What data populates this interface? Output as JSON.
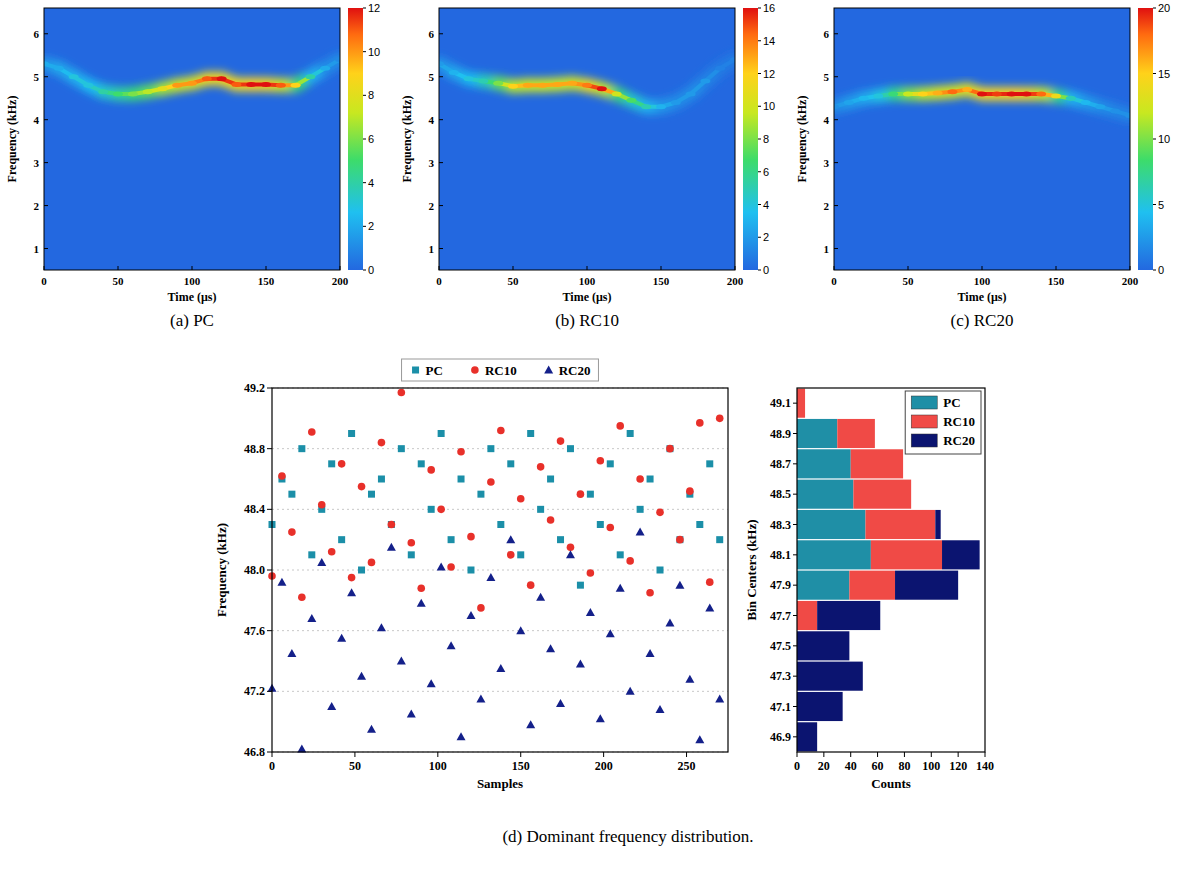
{
  "chart_data": [
    {
      "type": "heatmap",
      "title": "(a) PC",
      "xlabel": "Time (μs)",
      "ylabel": "Frequency (kHz)",
      "x": [
        0,
        10,
        20,
        30,
        40,
        50,
        60,
        70,
        80,
        90,
        100,
        110,
        120,
        130,
        140,
        150,
        160,
        170,
        180,
        190,
        200
      ],
      "ridge": [
        5.3,
        5.2,
        5.0,
        4.8,
        4.65,
        4.6,
        4.6,
        4.65,
        4.72,
        4.8,
        4.85,
        4.95,
        4.95,
        4.82,
        4.82,
        4.82,
        4.8,
        4.8,
        5.0,
        5.2,
        5.4
      ],
      "intensity": [
        2,
        2,
        3,
        3,
        4,
        5,
        6,
        7,
        8,
        10,
        10,
        11,
        12,
        11,
        12,
        12,
        11,
        9,
        4,
        2,
        1
      ],
      "xlim": [
        0,
        200
      ],
      "xticks": [
        0,
        50,
        100,
        150,
        200
      ],
      "ylim": [
        0.5,
        6.6
      ],
      "yticks": [
        1,
        2,
        3,
        4,
        5,
        6
      ],
      "colorbar_range": [
        0,
        12
      ],
      "colorbar_ticks": [
        0,
        2,
        4,
        6,
        8,
        10,
        12
      ]
    },
    {
      "type": "heatmap",
      "title": "(b) RC10",
      "xlabel": "Time (μs)",
      "ylabel": "Frequency (kHz)",
      "x": [
        0,
        10,
        20,
        30,
        40,
        50,
        60,
        70,
        80,
        90,
        100,
        110,
        120,
        130,
        140,
        150,
        160,
        170,
        180,
        190,
        200
      ],
      "ridge": [
        5.3,
        5.1,
        4.95,
        4.9,
        4.85,
        4.78,
        4.8,
        4.8,
        4.82,
        4.85,
        4.8,
        4.72,
        4.6,
        4.45,
        4.3,
        4.3,
        4.4,
        4.6,
        4.9,
        5.2,
        5.4
      ],
      "intensity": [
        2,
        3,
        4,
        5,
        8,
        12,
        13,
        13,
        13,
        13,
        14,
        16,
        10,
        7,
        5,
        3,
        2,
        2,
        2,
        1,
        1
      ],
      "xlim": [
        0,
        200
      ],
      "xticks": [
        0,
        50,
        100,
        150,
        200
      ],
      "ylim": [
        0.5,
        6.6
      ],
      "yticks": [
        1,
        2,
        3,
        4,
        5,
        6
      ],
      "colorbar_range": [
        0,
        16
      ],
      "colorbar_ticks": [
        0,
        2,
        4,
        6,
        8,
        10,
        12,
        14,
        16
      ]
    },
    {
      "type": "heatmap",
      "title": "(c) RC20",
      "xlabel": "Time (μs)",
      "ylabel": "Frequency (kHz)",
      "x": [
        0,
        10,
        20,
        30,
        40,
        50,
        60,
        70,
        80,
        90,
        100,
        110,
        120,
        130,
        140,
        150,
        160,
        170,
        180,
        190,
        200
      ],
      "ridge": [
        4.3,
        4.4,
        4.5,
        4.55,
        4.6,
        4.6,
        4.6,
        4.62,
        4.65,
        4.7,
        4.6,
        4.6,
        4.6,
        4.6,
        4.6,
        4.55,
        4.5,
        4.4,
        4.3,
        4.2,
        4.1
      ],
      "intensity": [
        2,
        3,
        4,
        5,
        8,
        12,
        15,
        16,
        18,
        16,
        20,
        19,
        20,
        20,
        18,
        14,
        6,
        4,
        3,
        2,
        2
      ],
      "xlim": [
        0,
        200
      ],
      "xticks": [
        0,
        50,
        100,
        150,
        200
      ],
      "ylim": [
        0.5,
        6.6
      ],
      "yticks": [
        1,
        2,
        3,
        4,
        5,
        6
      ],
      "colorbar_range": [
        0,
        20
      ],
      "colorbar_ticks": [
        0,
        5,
        10,
        15,
        20
      ]
    },
    {
      "type": "scatter",
      "title": "(d) Dominant frequency distribution.",
      "xlabel": "Samples",
      "ylabel": "Frequency (kHz)",
      "x": [
        0,
        6,
        12,
        18,
        24,
        30,
        36,
        42,
        48,
        54,
        60,
        66,
        72,
        78,
        84,
        90,
        96,
        102,
        108,
        114,
        120,
        126,
        132,
        138,
        144,
        150,
        156,
        162,
        168,
        174,
        180,
        186,
        192,
        198,
        204,
        210,
        216,
        222,
        228,
        234,
        240,
        246,
        252,
        258,
        264,
        270
      ],
      "series": [
        {
          "name": "PC",
          "color": "#1b8fa8",
          "marker": "square",
          "values": [
            48.3,
            48.6,
            48.5,
            48.8,
            48.1,
            48.4,
            48.7,
            48.2,
            48.9,
            48.0,
            48.5,
            48.6,
            48.3,
            48.8,
            48.1,
            48.7,
            48.4,
            48.9,
            48.2,
            48.6,
            48.0,
            48.5,
            48.8,
            48.3,
            48.7,
            48.1,
            48.9,
            48.4,
            48.6,
            48.2,
            48.8,
            47.9,
            48.5,
            48.3,
            48.7,
            48.1,
            48.9,
            48.4,
            48.6,
            48.0,
            48.8,
            48.2,
            48.5,
            48.3,
            48.7,
            48.2
          ]
        },
        {
          "name": "RC10",
          "color": "#e8302a",
          "marker": "circle",
          "values": [
            47.96,
            48.62,
            48.25,
            47.82,
            48.91,
            48.43,
            48.12,
            48.7,
            47.95,
            48.55,
            48.05,
            48.84,
            48.3,
            49.17,
            48.18,
            47.88,
            48.66,
            48.4,
            48.02,
            48.78,
            48.22,
            47.75,
            48.58,
            48.92,
            48.1,
            48.47,
            47.9,
            48.68,
            48.33,
            48.85,
            48.15,
            48.5,
            47.98,
            48.72,
            48.28,
            48.95,
            48.06,
            48.6,
            47.85,
            48.38,
            48.8,
            48.2,
            48.52,
            48.97,
            47.92,
            49.0
          ]
        },
        {
          "name": "RC20",
          "color": "#14208a",
          "marker": "triangle",
          "values": [
            47.22,
            47.92,
            47.45,
            46.82,
            47.68,
            48.05,
            47.1,
            47.55,
            47.85,
            47.3,
            46.95,
            47.62,
            48.15,
            47.4,
            47.05,
            47.78,
            47.25,
            48.02,
            47.5,
            46.9,
            47.7,
            47.15,
            47.95,
            47.35,
            48.2,
            47.6,
            46.98,
            47.82,
            47.48,
            47.12,
            48.1,
            47.38,
            47.72,
            47.02,
            47.58,
            47.88,
            47.2,
            48.25,
            47.45,
            47.08,
            47.65,
            47.9,
            47.28,
            46.88,
            47.75,
            47.15
          ]
        }
      ],
      "xlim": [
        0,
        275
      ],
      "xticks": [
        0,
        50,
        100,
        150,
        200,
        250
      ],
      "ylim": [
        46.8,
        49.2
      ],
      "yticks": [
        46.8,
        47.2,
        47.6,
        {
          "value": 48,
          "label": "48.0"
        },
        48.4,
        48.8,
        49.2
      ],
      "grid": true,
      "legend": "top"
    },
    {
      "type": "bar",
      "orientation": "horizontal",
      "stacked": true,
      "xlabel": "Counts",
      "ylabel": "Bin Centers (kHz)",
      "categories": [
        "46.9",
        "47.1",
        "47.3",
        "47.5",
        "47.7",
        "47.9",
        "48.1",
        "48.3",
        "48.5",
        "48.7",
        "48.9",
        "49.1"
      ],
      "series": [
        {
          "name": "PC",
          "color": "#1f8fa6",
          "values": [
            null,
            null,
            null,
            null,
            null,
            39,
            55,
            51,
            42,
            40,
            30,
            null
          ]
        },
        {
          "name": "RC10",
          "color": "#f04a46",
          "values": [
            null,
            null,
            null,
            null,
            15,
            34,
            53,
            52,
            43,
            39,
            28,
            6
          ]
        },
        {
          "name": "RC20",
          "color": "#0b1470",
          "values": [
            15,
            34,
            49,
            39,
            47,
            47,
            28,
            4,
            null,
            null,
            null,
            null
          ]
        }
      ],
      "xlim": [
        0,
        140
      ],
      "xticks": [
        0,
        20,
        40,
        60,
        80,
        100,
        120,
        140
      ],
      "legend": "top-right"
    }
  ]
}
